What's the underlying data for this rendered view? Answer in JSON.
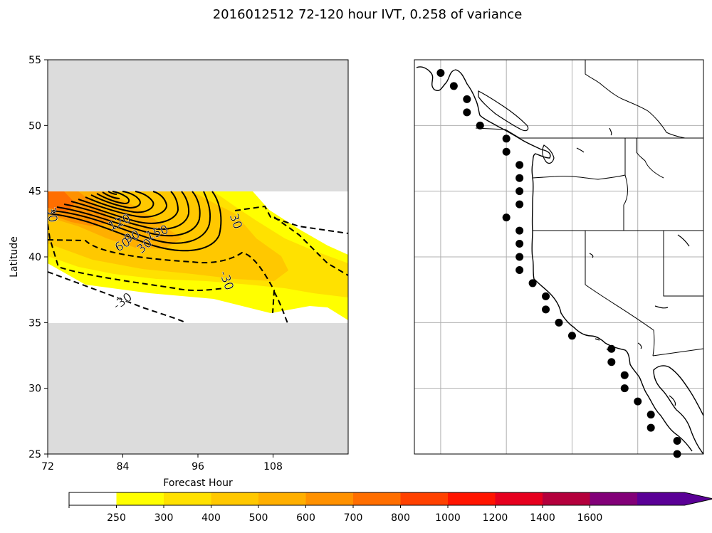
{
  "figure": {
    "title": "2016012512 72-120 hour IVT, 0.258 of variance"
  },
  "chart_data": [
    {
      "type": "heatmap",
      "subtype": "filled-contour with line contours",
      "xlabel": "Forecast Hour",
      "ylabel": "Latitude",
      "xlim": [
        72,
        120
      ],
      "ylim": [
        25,
        55
      ],
      "xticks": [
        72,
        84,
        96,
        108
      ],
      "yticks": [
        25,
        30,
        35,
        40,
        45,
        50,
        55
      ],
      "masked_latitudes": [
        [
          25,
          35
        ],
        [
          45,
          55
        ]
      ],
      "contour_labels": [
        {
          "text": "30",
          "x": 72.6,
          "y": 43.2,
          "angle": 80
        },
        {
          "text": "150",
          "x": 89.5,
          "y": 41.8,
          "angle": -20
        },
        {
          "text": "120",
          "x": 83.5,
          "y": 42.6,
          "angle": -25
        },
        {
          "text": "90",
          "x": 85.5,
          "y": 41.5,
          "angle": -25
        },
        {
          "text": "60",
          "x": 84,
          "y": 40.9,
          "angle": -30
        },
        {
          "text": "30",
          "x": 87.5,
          "y": 40.8,
          "angle": -40
        },
        {
          "text": "30",
          "x": 102,
          "y": 42.7,
          "angle": 70
        },
        {
          "text": "-30",
          "x": 100.5,
          "y": 38.2,
          "angle": 70
        },
        {
          "text": "-30",
          "x": 84,
          "y": 36.6,
          "angle": -35
        }
      ],
      "colorbar": {
        "levels": [
          250,
          300,
          400,
          500,
          600,
          700,
          800,
          1000,
          1200,
          1400,
          1600
        ],
        "colors": [
          "#ffffff",
          "#ffff00",
          "#ffe100",
          "#ffc800",
          "#ffaf00",
          "#ff9100",
          "#ff6e00",
          "#ff4100",
          "#ff1400",
          "#e6001e",
          "#b4003c",
          "#820078",
          "#5a0096"
        ],
        "extend": "max"
      }
    },
    {
      "type": "scatter",
      "subtype": "map",
      "region": "US West Coast / Baja California",
      "lon_range": [
        -132,
        -110
      ],
      "lat_range": [
        25,
        55
      ],
      "grid_lons": [
        -130,
        -125,
        -120,
        -115
      ],
      "grid_lats": [
        30,
        35,
        40,
        45,
        50
      ],
      "points": [
        {
          "lon": -130,
          "lat": 54
        },
        {
          "lon": -129,
          "lat": 53
        },
        {
          "lon": -128,
          "lat": 52
        },
        {
          "lon": -128,
          "lat": 51
        },
        {
          "lon": -127,
          "lat": 50
        },
        {
          "lon": -125,
          "lat": 49
        },
        {
          "lon": -125,
          "lat": 48
        },
        {
          "lon": -124,
          "lat": 47
        },
        {
          "lon": -124,
          "lat": 46
        },
        {
          "lon": -124,
          "lat": 45
        },
        {
          "lon": -124,
          "lat": 44
        },
        {
          "lon": -125,
          "lat": 43
        },
        {
          "lon": -124,
          "lat": 42
        },
        {
          "lon": -124,
          "lat": 41
        },
        {
          "lon": -124,
          "lat": 40
        },
        {
          "lon": -124,
          "lat": 39
        },
        {
          "lon": -123,
          "lat": 38
        },
        {
          "lon": -122,
          "lat": 37
        },
        {
          "lon": -122,
          "lat": 36
        },
        {
          "lon": -121,
          "lat": 35
        },
        {
          "lon": -120,
          "lat": 34
        },
        {
          "lon": -117,
          "lat": 33
        },
        {
          "lon": -117,
          "lat": 32
        },
        {
          "lon": -116,
          "lat": 31
        },
        {
          "lon": -116,
          "lat": 30
        },
        {
          "lon": -115,
          "lat": 29
        },
        {
          "lon": -114,
          "lat": 28
        },
        {
          "lon": -114,
          "lat": 27
        },
        {
          "lon": -112,
          "lat": 26
        },
        {
          "lon": -112,
          "lat": 25
        }
      ]
    }
  ]
}
